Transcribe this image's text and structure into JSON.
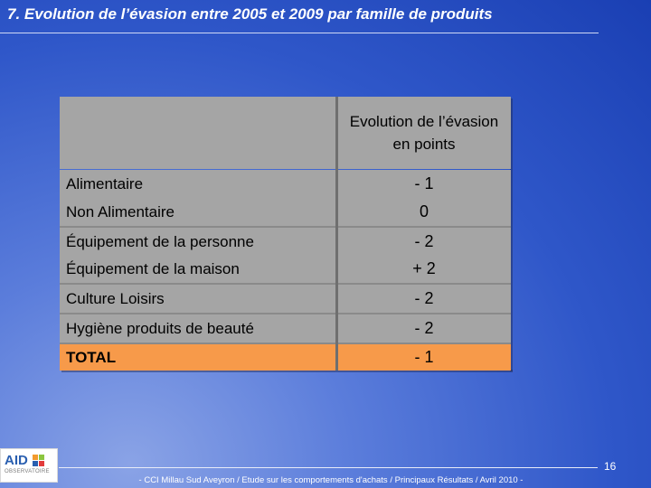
{
  "slide": {
    "title": "7. Evolution de l’évasion entre 2005 et 2009 par famille de produits"
  },
  "table": {
    "header": "Evolution de l’évasion en points",
    "rows": [
      {
        "label": "Alimentaire",
        "value": "- 1"
      },
      {
        "label": "Non Alimentaire",
        "value": "0"
      },
      {
        "label": "Équipement de la personne",
        "value": "- 2"
      },
      {
        "label": "Équipement de la maison",
        "value": "+ 2"
      },
      {
        "label": "Culture Loisirs",
        "value": "- 2"
      },
      {
        "label": "Hygiène produits de beauté",
        "value": "- 2"
      },
      {
        "label": "TOTAL",
        "value": "- 1"
      }
    ],
    "total_highlight_color": "#f79a4a",
    "cell_color": "#a5a5a5"
  },
  "footer": {
    "logo_text": "AID",
    "logo_subtext": "OBSERVATOIRE",
    "page_number": "16",
    "caption": "- CCI Millau Sud Aveyron / Etude sur les comportements d'achats / Principaux Résultats / Avril 2010 -"
  },
  "colors": {
    "background": "#2f57c9",
    "title_text": "#ffffff"
  }
}
